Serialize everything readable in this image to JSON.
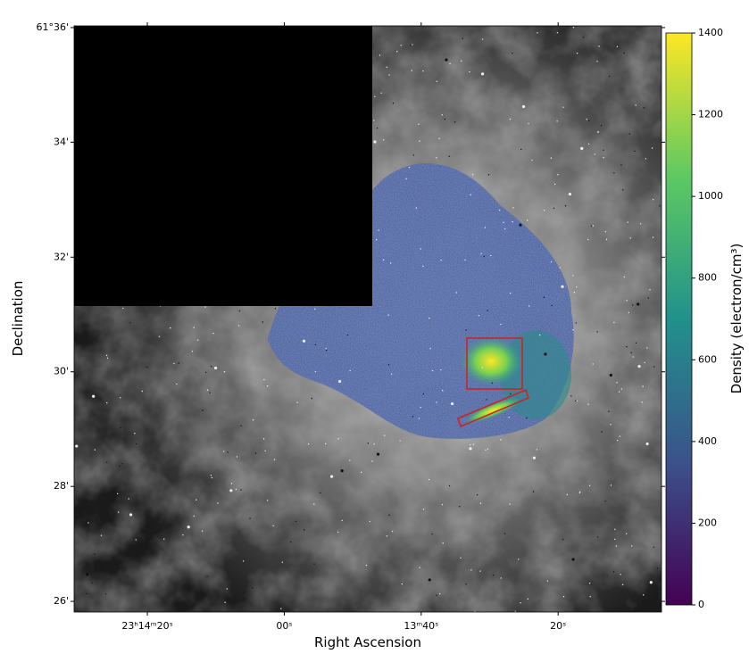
{
  "chart_data": {
    "type": "image",
    "xlabel": "Right Ascension",
    "ylabel": "Declination",
    "xlim": [
      90.7,
      4.9
    ],
    "xticks": [
      {
        "value": 80,
        "label": "23ʰ14ᵐ20ˢ"
      },
      {
        "value": 60,
        "label": "00ˢ"
      },
      {
        "value": 40,
        "label": "13ᵐ40ˢ"
      },
      {
        "value": 20,
        "label": "20ˢ"
      }
    ],
    "ylim": [
      61.4302,
      61.6005
    ],
    "yticks": [
      {
        "value": 61.6,
        "label": "61°36'"
      },
      {
        "value": 61.5667,
        "label": "34'"
      },
      {
        "value": 61.5333,
        "label": "32'"
      },
      {
        "value": 61.5,
        "label": "30'"
      },
      {
        "value": 61.4667,
        "label": "28'"
      },
      {
        "value": 61.4333,
        "label": "26'"
      }
    ],
    "colorbar": {
      "label": "Density (electron/cm³)",
      "lim": [
        0,
        1400
      ],
      "ticks": [
        0,
        200,
        400,
        600,
        800,
        1000,
        1200,
        1400
      ],
      "colormap": [
        "#440154",
        "#3b528b",
        "#21918c",
        "#5ec962",
        "#fde725"
      ]
    }
  }
}
